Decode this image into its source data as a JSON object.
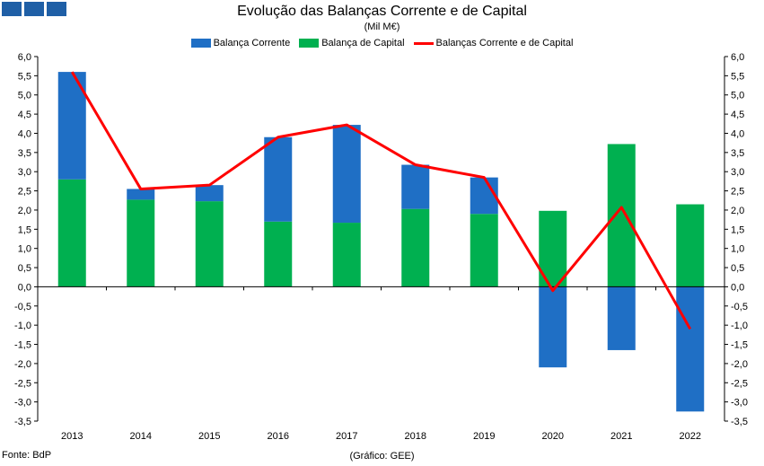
{
  "header": {
    "title": "Evolução das Balanças Corrente e de Capital",
    "subtitle": "(Mil M€)"
  },
  "footer": {
    "source": "Fonte: BdP",
    "credit": "(Gráfico: GEE)"
  },
  "colors": {
    "current": "#1f6fc5",
    "capital": "#00b050",
    "combined": "#ff0000",
    "logo": "#1f5fa6"
  },
  "chart_data": {
    "type": "bar",
    "stacked": true,
    "title": "Evolução das Balanças Corrente e de Capital",
    "subtitle": "(Mil M€)",
    "categories": [
      "2013",
      "2014",
      "2015",
      "2016",
      "2017",
      "2018",
      "2019",
      "2020",
      "2021",
      "2022"
    ],
    "series": [
      {
        "name": "Balança Corrente",
        "kind": "bar",
        "color": "#1f6fc5",
        "values": [
          2.8,
          0.28,
          0.42,
          2.2,
          2.55,
          1.15,
          0.95,
          -2.1,
          -1.65,
          -3.25
        ]
      },
      {
        "name": "Balança de Capital",
        "kind": "bar",
        "color": "#00b050",
        "values": [
          2.8,
          2.27,
          2.23,
          1.7,
          1.67,
          2.03,
          1.9,
          1.98,
          3.72,
          2.15
        ]
      },
      {
        "name": "Balanças Corrente e de Capital",
        "kind": "line",
        "color": "#ff0000",
        "values": [
          5.6,
          2.55,
          2.65,
          3.9,
          4.22,
          3.18,
          2.85,
          -0.1,
          2.07,
          -1.1
        ]
      }
    ],
    "ylim": [
      -3.5,
      6.0
    ],
    "yticks": [
      "6,0",
      "5,5",
      "5,0",
      "4,5",
      "4,0",
      "3,5",
      "3,0",
      "2,5",
      "2,0",
      "1,5",
      "1,0",
      "0,5",
      "0,0",
      "-0,5",
      "-1,0",
      "-1,5",
      "-2,0",
      "-2,5",
      "-3,0",
      "-3,5"
    ],
    "grid": false,
    "legend": "top-center",
    "secondary_axis_mirrored": true
  }
}
